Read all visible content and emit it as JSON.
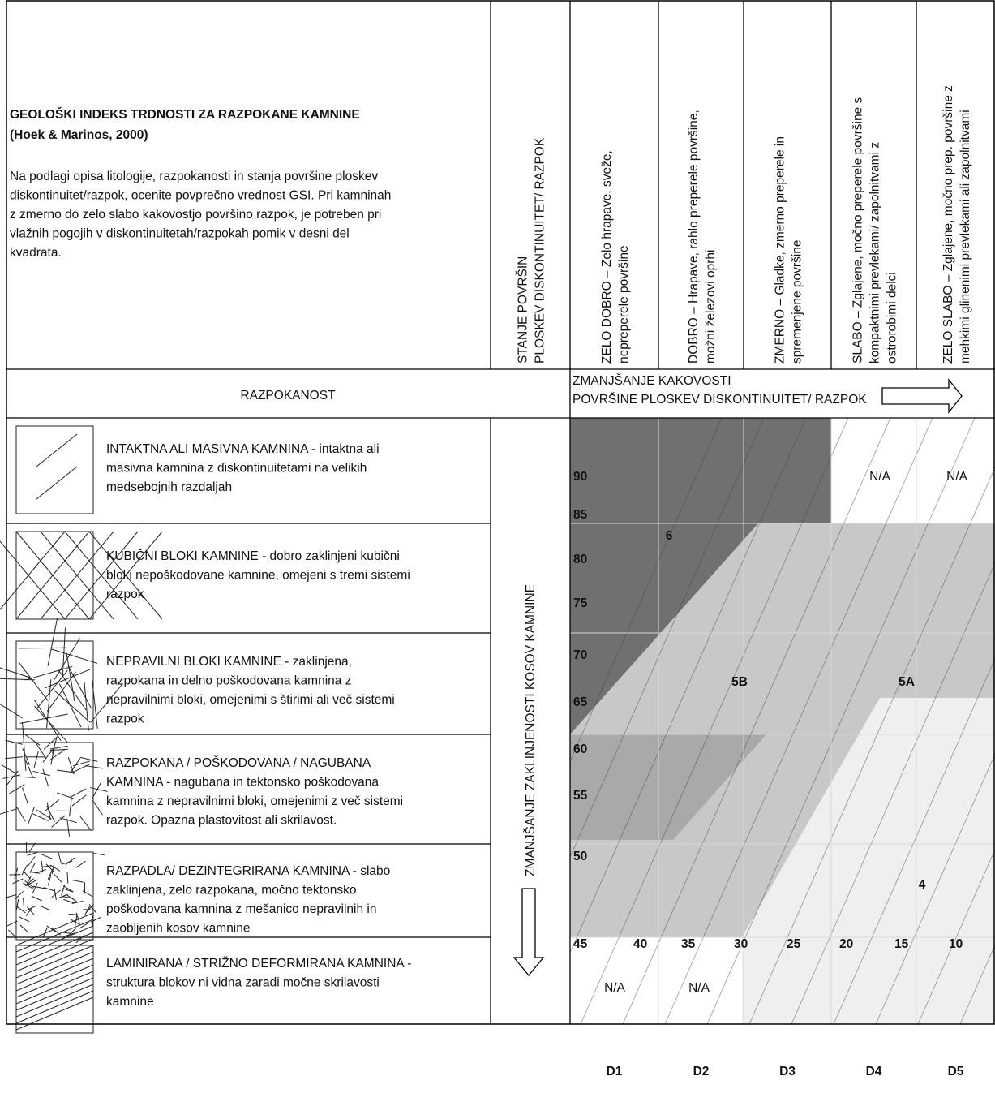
{
  "header": {
    "title": "GEOLOŠKI INDEKS TRDNOSTI ZA RAZPOKANE KAMNINE",
    "source": "(Hoek & Marinos, 2000)",
    "description_lines": [
      "Na podlagi opisa litologije, razpokanosti in stanja površine ploskev",
      "diskontinuitet/razpok, ocenite povprečno vrednost GSI. Pri kamninah",
      "z zmerno do zelo slabo kakovostjo površino razpok, je potreben pri",
      "vlažnih pogojih v diskontinuitetah/razpokah pomik v desni del",
      "kvadrata."
    ]
  },
  "surface_condition": {
    "label_lines": [
      "STANJE POVRŠIN",
      "PLOSKEV DISKONTINUITET/ RAZPOK"
    ],
    "trend_lines": [
      "ZMANJŠANJE KAKOVOSTI",
      "POVRŠINE PLOSKEV DISKONTINUITET/ RAZPOK"
    ],
    "columns": [
      {
        "code": "D1",
        "lines": [
          "ZELO DOBRO – Zelo hrapave, sveže,",
          "nepreperele površine"
        ]
      },
      {
        "code": "D2",
        "lines": [
          "DOBRO – Hrapave, rahlo preperele površine,",
          "možni železovi oprhi"
        ]
      },
      {
        "code": "D3",
        "lines": [
          "ZMERNO – Gladke, zmerno preperele in",
          "spremenjene površine"
        ]
      },
      {
        "code": "D4",
        "lines": [
          "SLABO – Zglajene, močno preperele površine s",
          "kompaktnimi prevlekami/ zapolnitvami z",
          "ostrorobimi delci"
        ]
      },
      {
        "code": "D5",
        "lines": [
          "ZELO SLABO – Zglajene, močno prep. površine z",
          "mehkimi glinenimi prevlekami ali zapolnitvami"
        ]
      }
    ]
  },
  "structure": {
    "label": "RAZPOKANOST",
    "trend": "ZMANJŠANJE ZAKLINJENOSTI KOSOV KAMNINE",
    "rows": [
      {
        "lines": [
          "INTAKTNA ALI MASIVNA KAMNINA - intaktna ali",
          "masivna kamnina z diskontinuitetami na velikih",
          "medsebojnih razdaljah"
        ]
      },
      {
        "lines": [
          "KUBIČNI BLOKI KAMNINE - dobro zaklinjeni kubični",
          "bloki nepoškodovane kamnine, omejeni s tremi sistemi",
          "razpok"
        ]
      },
      {
        "lines": [
          "NEPRAVILNI BLOKI  KAMNINE - zaklinjena,",
          "razpokana in delno poškodovana kamnina z",
          "nepravilnimi bloki, omejenimi s štirimi ali več sistemi",
          "razpok"
        ]
      },
      {
        "lines": [
          "RAZPOKANA / POŠKODOVANA / NAGUBANA",
          "KAMNINA - nagubana in tektonsko poškodovana",
          "kamnina z nepravilnimi bloki, omejenimi z več sistemi",
          "razpok. Opazna plastovitost ali skrilavost."
        ]
      },
      {
        "lines": [
          "RAZPADLA/ DEZINTEGRIRANA KAMNINA - slabo",
          "zaklinjena, zelo razpokana, močno tektonsko",
          "poškodovana kamnina z mešanico nepravilnih in",
          "zaobljenih kosov kamnine"
        ]
      },
      {
        "lines": [
          "LAMINIRANA / STRIŽNO DEFORMIRANA KAMNINA -",
          "struktura blokov ni vidna zaradi močne skrilavosti",
          "kamnine"
        ]
      }
    ]
  },
  "chart": {
    "gsi_left": [
      90,
      85,
      80,
      75,
      70,
      65,
      60,
      55,
      50,
      45
    ],
    "gsi_bottom": [
      40,
      35,
      30,
      25,
      20,
      15,
      10
    ],
    "zones": [
      "6",
      "5B",
      "5A",
      "4"
    ],
    "not_applicable": [
      "N/A",
      "N/A",
      "N/A",
      "N/A"
    ]
  }
}
